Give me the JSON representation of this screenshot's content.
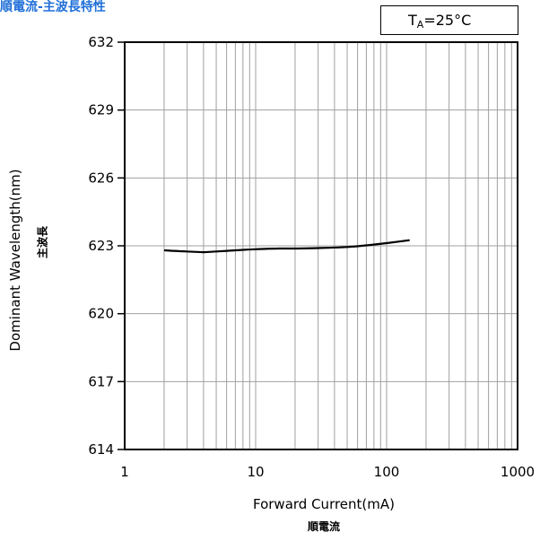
{
  "title": "順電流-主波長特性",
  "condition": {
    "prefix": "T",
    "sub": "A",
    "suffix": "=25°C"
  },
  "colors": {
    "title": "#1f6fd8",
    "grid": "#a0a0a0",
    "line": "#000000"
  },
  "chart_data": {
    "type": "line",
    "title": "順電流-主波長特性",
    "xlabel": "Forward Current(mA)",
    "xlabel_jp": "順電流",
    "ylabel": "Dominant Wavelength(nm)",
    "ylabel_jp": "主波長",
    "xscale": "log",
    "xlim": [
      1,
      1000
    ],
    "ylim": [
      614,
      632
    ],
    "xticks": [
      1,
      10,
      100,
      1000
    ],
    "xtick_labels": [
      "1",
      "10",
      "100",
      "1000"
    ],
    "yticks": [
      614,
      617,
      620,
      623,
      626,
      629,
      632
    ],
    "ytick_labels": [
      "614",
      "617",
      "620",
      "623",
      "626",
      "629",
      "632"
    ],
    "grid": true,
    "series": [
      {
        "x": [
          2,
          3,
          4,
          5,
          7,
          10,
          15,
          20,
          30,
          50,
          70,
          100,
          150
        ],
        "y": [
          622.8,
          622.75,
          622.72,
          622.75,
          622.8,
          622.85,
          622.88,
          622.88,
          622.9,
          622.95,
          623.02,
          623.12,
          623.25
        ]
      }
    ]
  }
}
